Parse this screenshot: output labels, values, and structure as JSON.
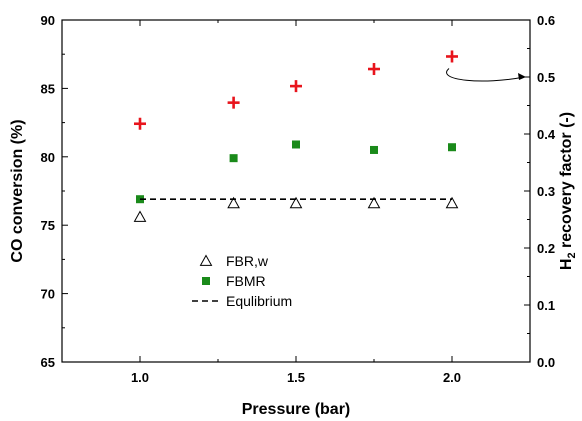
{
  "chart_data": {
    "type": "scatter",
    "xlabel": "Pressure (bar)",
    "ylabel": "CO conversion (%)",
    "ylabel_right": {
      "prefix": "H",
      "subscript": "2",
      "suffix": " recovery factor (-)"
    },
    "xlim": [
      0.75,
      2.25
    ],
    "ylim": [
      65,
      90
    ],
    "ylim_right": [
      0.0,
      0.6
    ],
    "x_ticks": [
      1.0,
      1.5,
      2.0
    ],
    "x_tick_labels": [
      "1.0",
      "1.5",
      "2.0"
    ],
    "y_ticks": [
      65,
      70,
      75,
      80,
      85,
      90
    ],
    "y_tick_labels": [
      "65",
      "70",
      "75",
      "80",
      "85",
      "90"
    ],
    "y_right_ticks": [
      0.0,
      0.1,
      0.2,
      0.3,
      0.4,
      0.5,
      0.6
    ],
    "y_right_tick_labels": [
      "0.0",
      "0.1",
      "0.2",
      "0.3",
      "0.4",
      "0.5",
      "0.6"
    ],
    "series": [
      {
        "name": "FBR,w",
        "marker": "triangle-open",
        "color": "#000000",
        "axis": "left",
        "points": [
          {
            "x": 1.0,
            "y": 75.6
          },
          {
            "x": 1.3,
            "y": 76.6
          },
          {
            "x": 1.5,
            "y": 76.6
          },
          {
            "x": 1.75,
            "y": 76.6
          },
          {
            "x": 2.0,
            "y": 76.6
          }
        ]
      },
      {
        "name": "FBMR",
        "marker": "square-filled",
        "color": "#1a8a1a",
        "axis": "left",
        "points": [
          {
            "x": 1.0,
            "y": 76.9
          },
          {
            "x": 1.3,
            "y": 79.9
          },
          {
            "x": 1.5,
            "y": 80.9
          },
          {
            "x": 1.75,
            "y": 80.5
          },
          {
            "x": 2.0,
            "y": 80.7
          }
        ]
      },
      {
        "name": "Equlibrium",
        "marker": "dashed-line",
        "color": "#000000",
        "axis": "left",
        "points": [
          {
            "x": 1.0,
            "y": 76.9
          },
          {
            "x": 2.0,
            "y": 76.9
          }
        ]
      },
      {
        "marker": "plus",
        "color": "#e8141c",
        "axis": "right",
        "points": [
          {
            "x": 1.0,
            "y": 0.418
          },
          {
            "x": 1.3,
            "y": 0.455
          },
          {
            "x": 1.5,
            "y": 0.484
          },
          {
            "x": 1.75,
            "y": 0.514
          },
          {
            "x": 2.0,
            "y": 0.536
          }
        ]
      }
    ],
    "legend": {
      "position": "lower-left",
      "entries": [
        "FBR,w",
        "FBMR",
        "Equlibrium"
      ]
    },
    "annotation": {
      "type": "curved-arrow",
      "from_series": 3,
      "points_to": "right-axis"
    }
  }
}
